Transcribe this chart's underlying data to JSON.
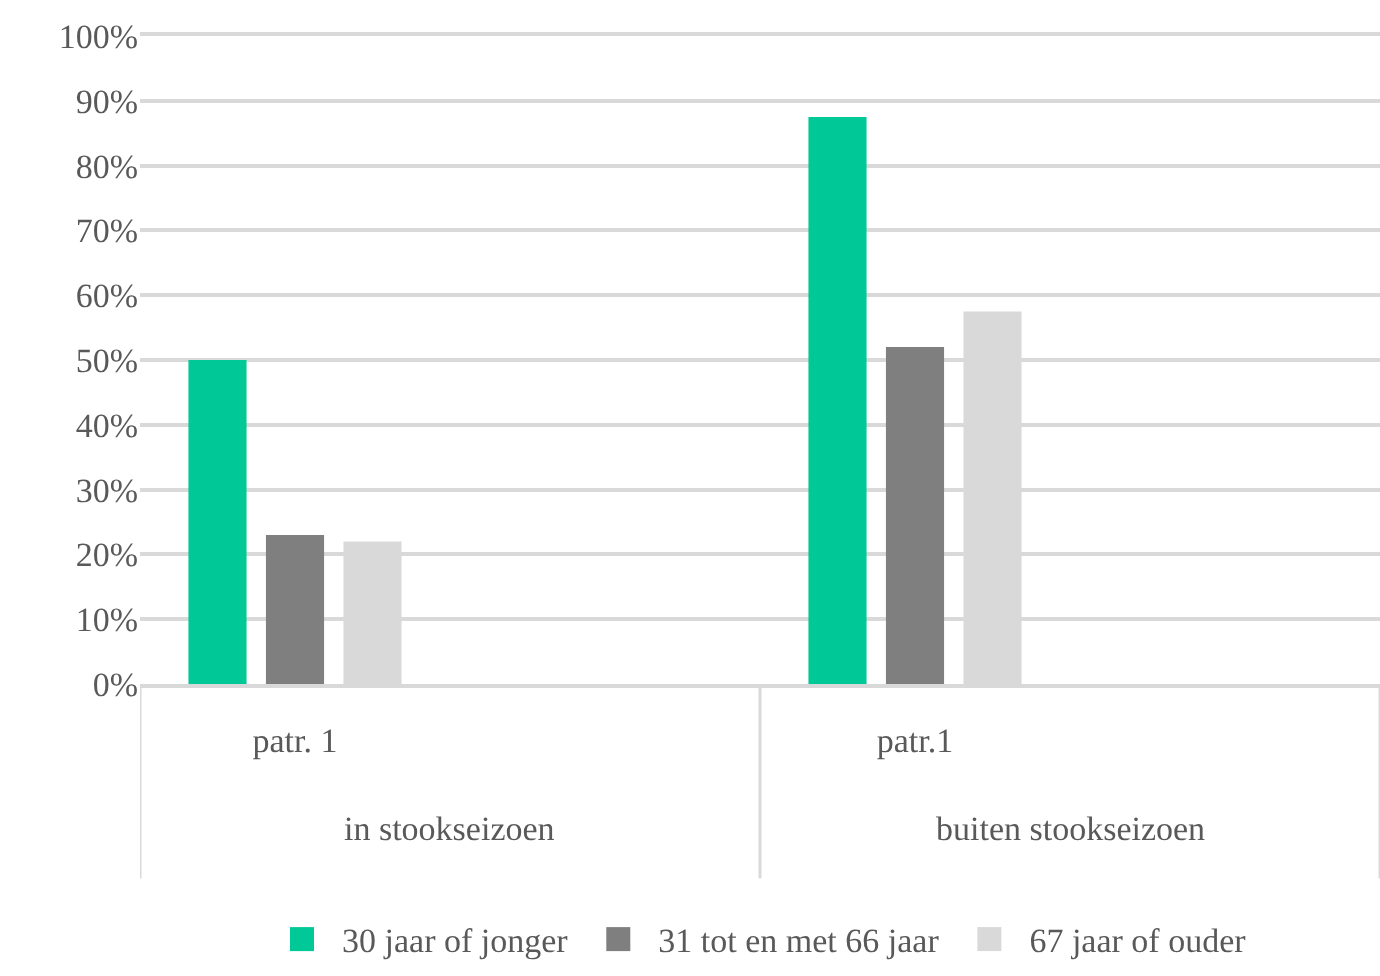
{
  "chart_data": {
    "type": "bar",
    "categories": [
      "patr. 1",
      null,
      "patr.1",
      null
    ],
    "series": [
      {
        "name": "30 jaar of jonger",
        "color": "#00c896",
        "values": [
          50,
          null,
          87.5,
          null
        ]
      },
      {
        "name": "31 tot en met 66 jaar",
        "color": "#7f7f7f",
        "values": [
          23,
          null,
          52,
          null
        ]
      },
      {
        "name": "67 jaar of ouder",
        "color": "#d9d9d9",
        "values": [
          22,
          null,
          57.5,
          null
        ]
      }
    ],
    "ylim": [
      0,
      100
    ],
    "yticks": [
      {
        "value": 0,
        "label": "0%"
      },
      {
        "value": 10,
        "label": "10%"
      },
      {
        "value": 20,
        "label": "20%"
      },
      {
        "value": 30,
        "label": "30%"
      },
      {
        "value": 40,
        "label": "40%"
      },
      {
        "value": 50,
        "label": "50%"
      },
      {
        "value": 60,
        "label": "60%"
      },
      {
        "value": 70,
        "label": "70%"
      },
      {
        "value": 80,
        "label": "80%"
      },
      {
        "value": 90,
        "label": "90%"
      },
      {
        "value": 100,
        "label": "100%"
      }
    ],
    "annotations": [
      "in stookseizoen",
      "buiten stookseizoen"
    ],
    "grid": "y",
    "legend": "bottom"
  }
}
